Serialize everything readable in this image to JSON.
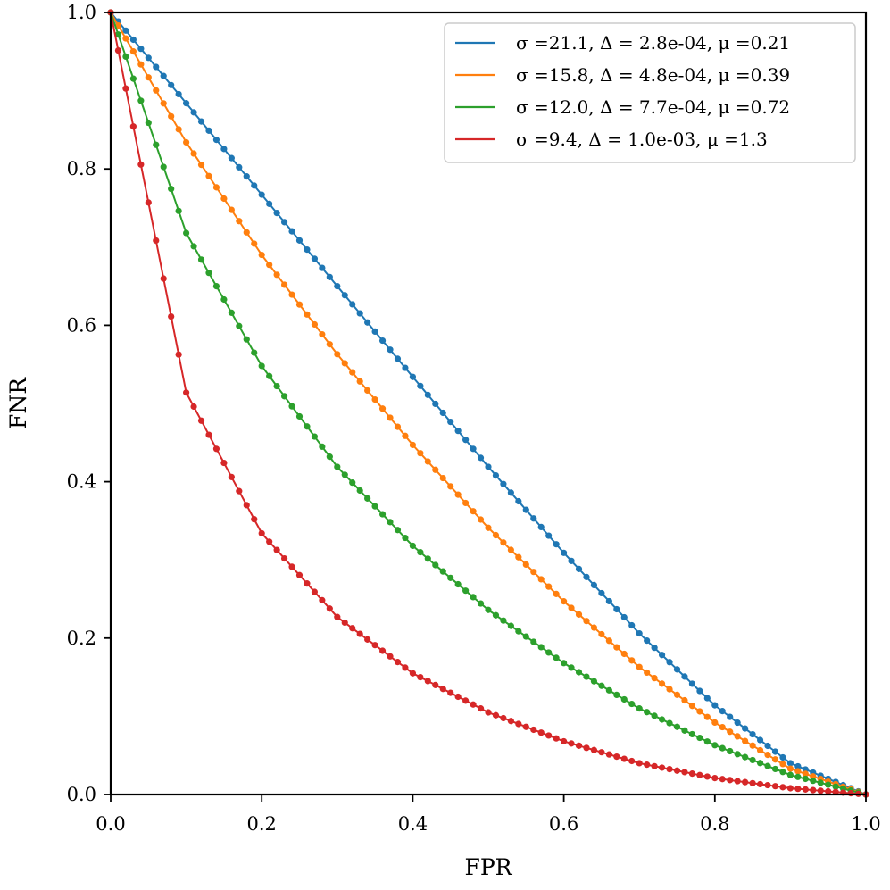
{
  "chart_data": {
    "type": "line",
    "xlabel": "FPR",
    "ylabel": "FNR",
    "xlim": [
      0.0,
      1.0
    ],
    "ylim": [
      0.0,
      1.0
    ],
    "xticks": [
      "0.0",
      "0.2",
      "0.4",
      "0.6",
      "0.8",
      "1.0"
    ],
    "yticks": [
      "0.0",
      "0.2",
      "0.4",
      "0.6",
      "0.8",
      "1.0"
    ],
    "legend_position": "top-right",
    "grid": false,
    "markers": "dot",
    "series": [
      {
        "name": "σ =21.1, Δ = 2.8e-04, μ =0.21",
        "color": "#1f77b4",
        "mu": 0.21,
        "x": [
          0.0,
          0.1,
          0.2,
          0.3,
          0.4,
          0.5,
          0.6,
          0.7,
          0.8,
          0.9,
          1.0
        ],
        "y": [
          1.0,
          0.884,
          0.767,
          0.65,
          0.534,
          0.419,
          0.309,
          0.206,
          0.114,
          0.04,
          0.0
        ]
      },
      {
        "name": "σ =15.8, Δ = 4.8e-04, μ =0.39",
        "color": "#ff7f0e",
        "mu": 0.39,
        "x": [
          0.0,
          0.1,
          0.2,
          0.3,
          0.4,
          0.5,
          0.6,
          0.7,
          0.8,
          0.9,
          1.0
        ],
        "y": [
          1.0,
          0.834,
          0.69,
          0.563,
          0.447,
          0.341,
          0.247,
          0.163,
          0.092,
          0.033,
          0.0
        ]
      },
      {
        "name": "σ =12.0, Δ = 7.7e-04, μ =0.72",
        "color": "#2ca02c",
        "mu": 0.72,
        "x": [
          0.0,
          0.1,
          0.2,
          0.3,
          0.4,
          0.5,
          0.6,
          0.7,
          0.8,
          0.9,
          1.0
        ],
        "y": [
          1.0,
          0.718,
          0.548,
          0.419,
          0.318,
          0.236,
          0.168,
          0.11,
          0.063,
          0.025,
          0.0
        ]
      },
      {
        "name": "σ =9.4, Δ = 1.0e-03, μ =1.3",
        "color": "#d62728",
        "mu": 1.3,
        "x": [
          0.0,
          0.1,
          0.2,
          0.3,
          0.4,
          0.5,
          0.6,
          0.7,
          0.8,
          0.9,
          1.0
        ],
        "y": [
          1.0,
          0.514,
          0.334,
          0.227,
          0.155,
          0.105,
          0.068,
          0.04,
          0.021,
          0.008,
          0.0
        ]
      }
    ]
  }
}
